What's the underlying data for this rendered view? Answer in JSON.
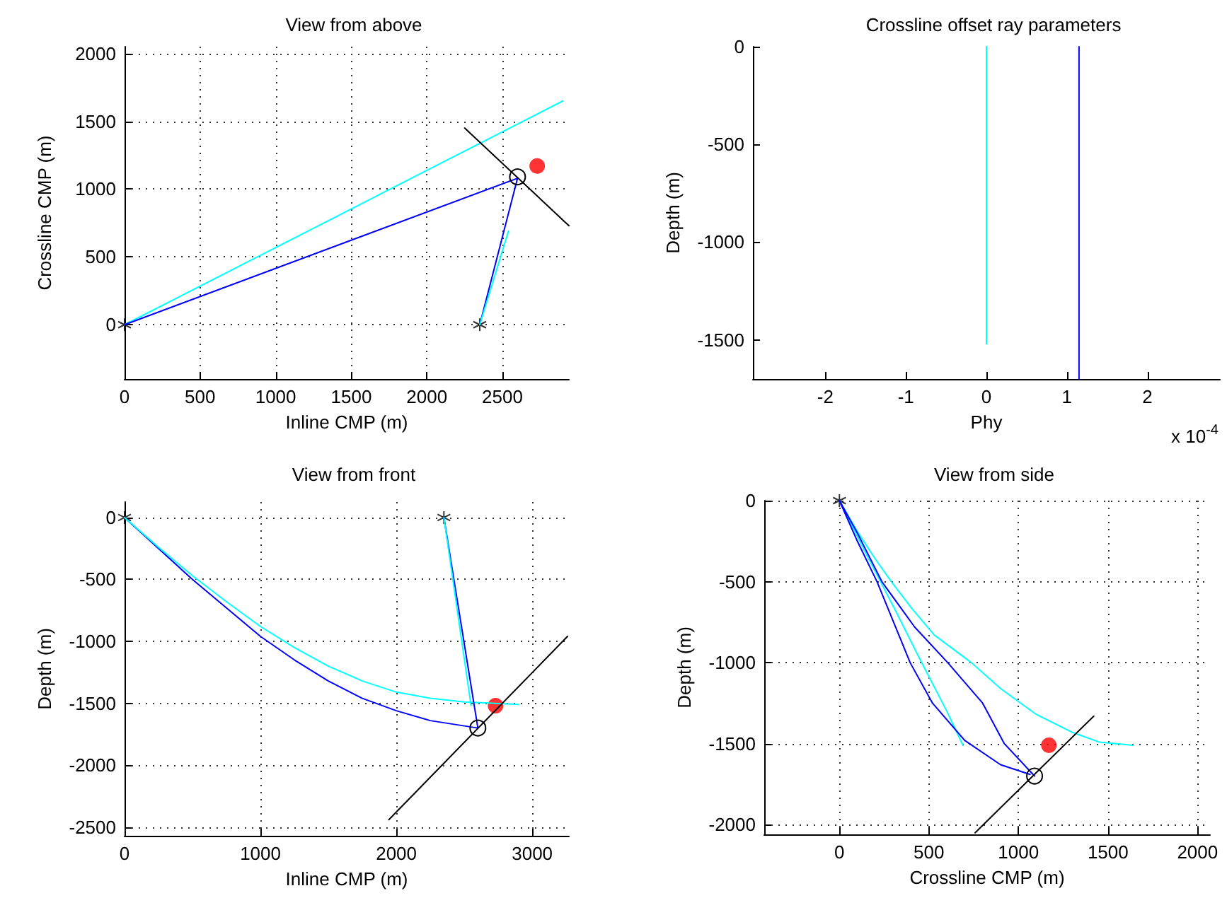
{
  "chart_data": [
    {
      "type": "line",
      "title": "View from above",
      "xlabel": "Inline CMP (m)",
      "ylabel": "Crossline CMP (m)",
      "xlim": [
        0,
        2940
      ],
      "ylim": [
        -400,
        2050
      ],
      "xticks": [
        0,
        500,
        1000,
        1500,
        2000,
        2500
      ],
      "yticks": [
        0,
        500,
        1000,
        1500,
        2000
      ],
      "grid": true,
      "series": [
        {
          "color": "#00ffff",
          "x": [
            0,
            2900
          ],
          "values": [
            0,
            1650
          ]
        },
        {
          "color": "#0000ff",
          "x": [
            0,
            2600,
            2350
          ],
          "values": [
            0,
            1080,
            0
          ]
        },
        {
          "color": "#00ffff",
          "x": [
            2350,
            2540
          ],
          "values": [
            0,
            690
          ]
        },
        {
          "color": "#000000",
          "x": [
            2250,
            2940
          ],
          "values": [
            1450,
            730
          ]
        },
        {
          "type": "line",
          "marker": "circle",
          "color": "#000000",
          "x": [
            2600
          ],
          "values": [
            1090
          ]
        },
        {
          "type": "scatter",
          "marker": "circle",
          "color": "#ff0000",
          "x": [
            2730
          ],
          "values": [
            1170
          ]
        },
        {
          "type": "scatter",
          "marker": "cross",
          "color": "#000000",
          "x": [
            0,
            2350
          ],
          "values": [
            0,
            0
          ]
        }
      ]
    },
    {
      "type": "line",
      "title": "Crossline offset ray parameters",
      "xlabel": "Phy",
      "ylabel": "Depth (m)",
      "annotations": [
        "x 10$^{-4}$"
      ],
      "xlim": [
        -2.9,
        2.9
      ],
      "ylim": [
        -1700,
        0
      ],
      "xticks": [
        -2,
        -1,
        0,
        1,
        2
      ],
      "yticks": [
        -1500,
        -1000,
        -500,
        0
      ],
      "grid": false,
      "series": [
        {
          "color": "#00ffff",
          "x": [
            0,
            0
          ],
          "values": [
            0,
            -1520
          ]
        },
        {
          "color": "#0000ff",
          "x": [
            1.15,
            1.15
          ],
          "values": [
            0,
            -1700
          ]
        }
      ]
    },
    {
      "type": "line",
      "title": "View from front",
      "xlabel": "Inline CMP (m)",
      "ylabel": "Depth (m)",
      "xlim": [
        0,
        3270
      ],
      "ylim": [
        -2570,
        125
      ],
      "xticks": [
        0,
        1000,
        2000,
        3000
      ],
      "yticks": [
        -2500,
        -2000,
        -1500,
        -1000,
        -500,
        0
      ],
      "grid": true,
      "series": [
        {
          "color": "#0000ff",
          "x": [
            0,
            250,
            500,
            750,
            1000,
            1250,
            1500,
            1750,
            2000,
            2250,
            2600
          ],
          "values": [
            0,
            -250,
            -500,
            -730,
            -960,
            -1150,
            -1320,
            -1460,
            -1560,
            -1640,
            -1700
          ]
        },
        {
          "color": "#00ffff",
          "x": [
            0,
            250,
            500,
            750,
            1000,
            1250,
            1500,
            1750,
            2000,
            2250,
            2500,
            2900
          ],
          "values": [
            0,
            -240,
            -470,
            -680,
            -880,
            -1050,
            -1200,
            -1320,
            -1410,
            -1460,
            -1490,
            -1510
          ]
        },
        {
          "color": "#0000ff",
          "x": [
            2350,
            2600
          ],
          "values": [
            0,
            -1700
          ]
        },
        {
          "color": "#00ffff",
          "x": [
            2350,
            2550
          ],
          "values": [
            0,
            -1520
          ]
        },
        {
          "color": "#000000",
          "x": [
            1945,
            3260
          ],
          "values": [
            -2440,
            -960
          ]
        },
        {
          "type": "line",
          "marker": "circle",
          "color": "#000000",
          "x": [
            2600
          ],
          "values": [
            -1700
          ]
        },
        {
          "type": "scatter",
          "marker": "circle",
          "color": "#ff0000",
          "x": [
            2730
          ],
          "values": [
            -1520
          ]
        },
        {
          "type": "scatter",
          "marker": "cross",
          "color": "#000000",
          "x": [
            0,
            2350
          ],
          "values": [
            0,
            0
          ]
        }
      ]
    },
    {
      "type": "line",
      "title": "View from side",
      "xlabel": "Crossline CMP (m)",
      "ylabel": "Depth (m)",
      "xlim": [
        -420,
        2070
      ],
      "ylim": [
        -2060,
        0
      ],
      "xticks": [
        0,
        500,
        1000,
        1500,
        2000
      ],
      "yticks": [
        -2000,
        -1500,
        -1000,
        -500,
        0
      ],
      "grid": true,
      "series": [
        {
          "color": "#00ffff",
          "x": [
            0,
            100,
            200,
            290,
            400,
            530,
            737,
            900,
            1100,
            1300,
            1450,
            1640
          ],
          "values": [
            0,
            -190,
            -360,
            -500,
            -660,
            -830,
            -1000,
            -1160,
            -1320,
            -1430,
            -1490,
            -1510
          ]
        },
        {
          "color": "#00ffff",
          "x": [
            0,
            150,
            300,
            450,
            600,
            690
          ],
          "values": [
            0,
            -330,
            -650,
            -980,
            -1300,
            -1510
          ]
        },
        {
          "color": "#0000ff",
          "x": [
            0,
            100,
            237,
            420,
            605,
            800,
            921,
            1090
          ],
          "values": [
            0,
            -200,
            -500,
            -780,
            -1000,
            -1250,
            -1500,
            -1700
          ]
        },
        {
          "color": "#0000ff",
          "x": [
            0,
            100,
            210,
            395,
            520,
            700,
            900,
            1065
          ],
          "values": [
            0,
            -250,
            -500,
            -1000,
            -1250,
            -1480,
            -1630,
            -1690
          ]
        },
        {
          "color": "#000000",
          "x": [
            758,
            1421
          ],
          "values": [
            -2050,
            -1330
          ]
        },
        {
          "type": "line",
          "marker": "circle",
          "color": "#000000",
          "x": [
            1090
          ],
          "values": [
            -1700
          ]
        },
        {
          "type": "scatter",
          "marker": "circle",
          "color": "#ff0000",
          "x": [
            1170
          ],
          "values": [
            -1510
          ]
        },
        {
          "type": "scatter",
          "marker": "cross",
          "color": "#000000",
          "x": [
            0
          ],
          "values": [
            0
          ]
        }
      ]
    }
  ]
}
